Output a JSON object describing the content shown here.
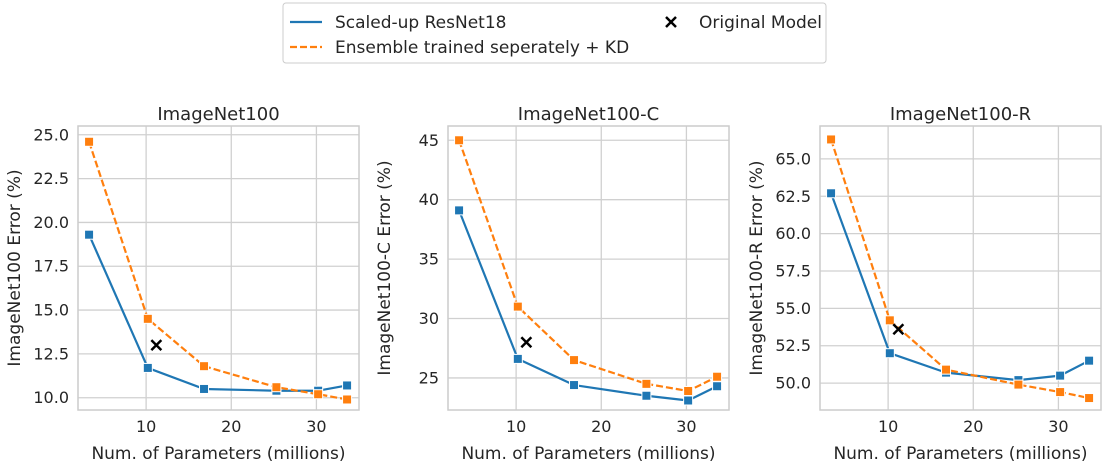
{
  "legend": {
    "items": [
      {
        "label": "Scaled-up ResNet18",
        "marker": "solid-line"
      },
      {
        "label": "Ensemble trained seperately + KD",
        "marker": "dashed-line"
      },
      {
        "label": "Original Model",
        "marker": "x"
      }
    ]
  },
  "colors": {
    "scaled": "#1f77b4",
    "ensemble": "#ff7f0e",
    "original": "#000000",
    "grid": "#d0d0d0",
    "spine": "#cccccc"
  },
  "chart_data": [
    {
      "type": "line",
      "title": "ImageNet100",
      "xlabel": "Num. of Parameters (millions)",
      "ylabel": "ImageNet100 Error (%)",
      "xlim": [
        2.0,
        35.0
      ],
      "ylim": [
        9.3,
        25.5
      ],
      "xticks": [
        10,
        20,
        30
      ],
      "yticks": [
        "10.0",
        "12.5",
        "15.0",
        "17.5",
        "20.0",
        "22.5",
        "25.0"
      ],
      "series": [
        {
          "name": "Scaled-up ResNet18",
          "x": [
            3.3,
            10.2,
            16.8,
            25.3,
            30.2,
            33.6
          ],
          "y": [
            19.3,
            11.7,
            10.5,
            10.4,
            10.4,
            10.7
          ]
        },
        {
          "name": "Ensemble trained seperately + KD",
          "x": [
            3.3,
            10.2,
            16.8,
            25.3,
            30.2,
            33.6
          ],
          "y": [
            24.6,
            14.5,
            11.8,
            10.6,
            10.2,
            9.9
          ]
        }
      ],
      "points": [
        {
          "name": "Original Model",
          "x": 11.2,
          "y": 13.0
        }
      ]
    },
    {
      "type": "line",
      "title": "ImageNet100-C",
      "xlabel": "Num. of Parameters (millions)",
      "ylabel": "ImageNet100-C Error (%)",
      "xlim": [
        2.0,
        35.0
      ],
      "ylim": [
        22.3,
        46.2
      ],
      "xticks": [
        10,
        20,
        30
      ],
      "yticks": [
        "25",
        "30",
        "35",
        "40",
        "45"
      ],
      "series": [
        {
          "name": "Scaled-up ResNet18",
          "x": [
            3.3,
            10.2,
            16.8,
            25.3,
            30.2,
            33.6
          ],
          "y": [
            39.1,
            26.6,
            24.4,
            23.5,
            23.1,
            24.3
          ]
        },
        {
          "name": "Ensemble trained seperately + KD",
          "x": [
            3.3,
            10.2,
            16.8,
            25.3,
            30.2,
            33.6
          ],
          "y": [
            45.0,
            31.0,
            26.5,
            24.5,
            23.9,
            25.1
          ]
        }
      ],
      "points": [
        {
          "name": "Original Model",
          "x": 11.2,
          "y": 28.0
        }
      ]
    },
    {
      "type": "line",
      "title": "ImageNet100-R",
      "xlabel": "Num. of Parameters (millions)",
      "ylabel": "ImageNet100-R Error (%)",
      "xlim": [
        2.0,
        35.0
      ],
      "ylim": [
        48.2,
        67.2
      ],
      "xticks": [
        10,
        20,
        30
      ],
      "yticks": [
        "50.0",
        "52.5",
        "55.0",
        "57.5",
        "60.0",
        "62.5",
        "65.0"
      ],
      "series": [
        {
          "name": "Scaled-up ResNet18",
          "x": [
            3.3,
            10.2,
            16.8,
            25.3,
            30.2,
            33.6
          ],
          "y": [
            62.7,
            52.0,
            50.7,
            50.2,
            50.5,
            51.5
          ]
        },
        {
          "name": "Ensemble trained seperately + KD",
          "x": [
            3.3,
            10.2,
            16.8,
            25.3,
            30.2,
            33.6
          ],
          "y": [
            66.3,
            54.2,
            50.9,
            49.9,
            49.4,
            49.0
          ]
        }
      ],
      "points": [
        {
          "name": "Original Model",
          "x": 11.2,
          "y": 53.6
        }
      ]
    }
  ]
}
